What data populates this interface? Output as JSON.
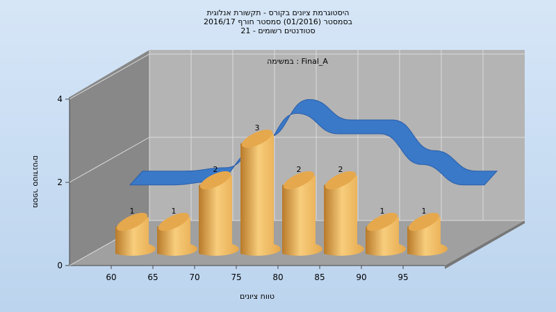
{
  "colors": {
    "background_top": "#d6e6f7",
    "background_bottom": "#bcd4ee",
    "back_wall": "#b4b4b4",
    "floor": "#a0a0a0",
    "side_wall": "#888888",
    "bar_light": "#f7cd7c",
    "bar_mid": "#e6a84c",
    "bar_dark": "#b87a2a",
    "curve": "#3a78c8",
    "curve_dark": "#2a5ea8"
  },
  "chart_data": {
    "type": "bar",
    "title_lines": [
      "היסטוגרמת ציונים בקורס - תקשורת אנלוגית",
      "בסמסטר  (01/2016)  סמסטר חורף 2016/17",
      "סטודנטים רשומים - 21"
    ],
    "annotation": "במשימה : Final_A",
    "xlabel": "טווח ציונים",
    "ylabel": "מספר סטודנטים",
    "x_ticks": [
      "60",
      "65",
      "70",
      "75",
      "80",
      "85",
      "90",
      "95"
    ],
    "y_ticks": [
      "0",
      "2",
      "4"
    ],
    "ylim": [
      0,
      4
    ],
    "bins": [
      "55-60",
      "60-65",
      "65-70",
      "70-75",
      "75-80",
      "80-85",
      "85-90",
      "90-95"
    ],
    "values": [
      1,
      1,
      2,
      3,
      2,
      2,
      1,
      1
    ],
    "data_labels": [
      "1",
      "1",
      "2",
      "3",
      "2",
      "2",
      "1",
      "1"
    ],
    "curve": {
      "x": [
        57.5,
        62.5,
        67.5,
        72.5,
        77.5,
        82.5,
        87.5,
        92.5,
        97.5,
        100
      ],
      "y": [
        1.0,
        1.0,
        1.1,
        2.0,
        3.1,
        2.5,
        2.5,
        1.6,
        1.0,
        1.0
      ]
    },
    "grid": true,
    "legend": "none",
    "style": "3d-cylinder"
  }
}
